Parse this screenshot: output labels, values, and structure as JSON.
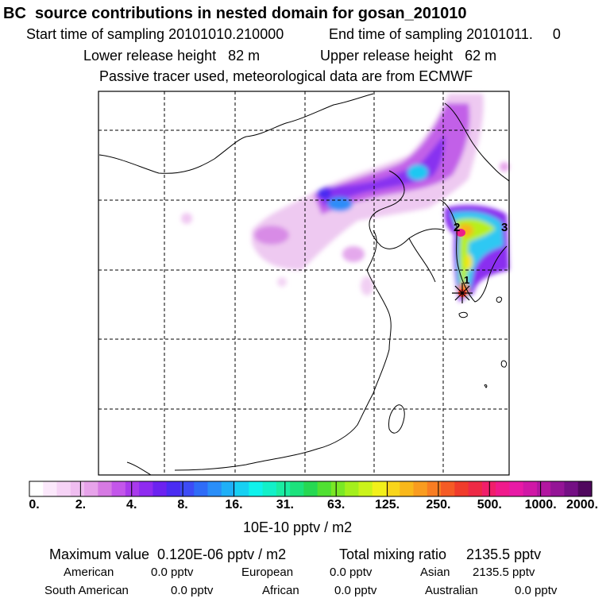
{
  "header": {
    "title": "BC  source contributions in nested domain for gosan_201010",
    "start_time": "Start time of sampling 20101010.210000",
    "end_time": "End time of sampling 20101011.     0",
    "lower_height": "Lower release height   82 m",
    "upper_height": "Upper release height   62 m",
    "tracer_note": "Passive tracer used, meteorological data are from ECMWF"
  },
  "chart_data": {
    "type": "heatmap",
    "title": "BC  source contributions in nested domain for gosan_201010",
    "colorbar": {
      "tick_labels": [
        "0.",
        "2.",
        "4.",
        "8.",
        "16.",
        "31.",
        "63.",
        "125.",
        "250.",
        "500.",
        "1000.",
        "2000."
      ],
      "colors": [
        "#ffffff",
        "#fbe8fb",
        "#f6d3f6",
        "#efbdf0",
        "#e7a3ea",
        "#d67ae3",
        "#c356ea",
        "#a93aec",
        "#8f2bf0",
        "#6c22f0",
        "#4a2cf2",
        "#3d4cf6",
        "#2f6cf7",
        "#2a8ef8",
        "#1fb0f7",
        "#17d0f2",
        "#0ff2ec",
        "#12f0c8",
        "#1aeca2",
        "#1ce27c",
        "#26d852",
        "#50e032",
        "#7ae825",
        "#a4ef1c",
        "#cbf31a",
        "#f2f01a",
        "#f8d51a",
        "#f9b81b",
        "#f99c1f",
        "#f87d22",
        "#f55b25",
        "#f03c2b",
        "#ed2a45",
        "#f01e6a",
        "#f01a8c",
        "#e81aa6",
        "#d018a6",
        "#b216a0",
        "#941496",
        "#740f84",
        "#50085e"
      ],
      "unit": "10E-10 pptv / m2"
    },
    "markers": [
      "1",
      "2",
      "3"
    ],
    "maximum": "Maximum value  0.120E-06 pptv / m2",
    "total_mixing_ratio": "Total mixing ratio     2135.5 pptv"
  },
  "regions": [
    {
      "name": "American",
      "value": "0.0 pptv"
    },
    {
      "name": "European",
      "value": "0.0 pptv"
    },
    {
      "name": "Asian",
      "value": "2135.5 pptv"
    },
    {
      "name": "South American",
      "value": "0.0 pptv"
    },
    {
      "name": "African",
      "value": "0.0 pptv"
    },
    {
      "name": "Australian",
      "value": "0.0 pptv"
    }
  ]
}
